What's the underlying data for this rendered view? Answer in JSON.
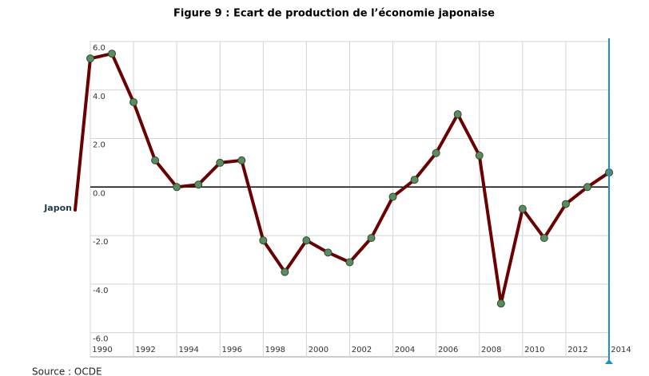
{
  "chart_data": {
    "type": "line",
    "title": "Figure 9 : Ecart de production de l’économie japonaise",
    "source": "Source : OCDE",
    "x": [
      1990,
      1991,
      1992,
      1993,
      1994,
      1995,
      1996,
      1997,
      1998,
      1999,
      2000,
      2001,
      2002,
      2003,
      2004,
      2005,
      2006,
      2007,
      2008,
      2009,
      2010,
      2011,
      2012,
      2013,
      2014
    ],
    "series": [
      {
        "name": "Japon",
        "color": "#6b0000",
        "marker_color": "#5b8c5f",
        "values": [
          5.3,
          5.5,
          3.5,
          1.1,
          0.0,
          0.1,
          1.0,
          1.1,
          -2.2,
          -3.5,
          -2.2,
          -2.7,
          -3.1,
          -2.1,
          -0.4,
          0.3,
          1.4,
          3.0,
          1.3,
          -4.8,
          -0.9,
          -2.1,
          -0.7,
          0.0,
          0.6
        ]
      }
    ],
    "xlim": [
      1990,
      2014
    ],
    "xticks": [
      1990,
      1992,
      1994,
      1996,
      1998,
      2000,
      2002,
      2004,
      2006,
      2008,
      2010,
      2012,
      2014
    ],
    "ylim": [
      -7,
      6
    ],
    "yticks": [
      {
        "value": 6,
        "label": "6.0"
      },
      {
        "value": 4,
        "label": "4.0"
      },
      {
        "value": 2,
        "label": "2.0"
      },
      {
        "value": 0,
        "label": "0.0"
      },
      {
        "value": -2,
        "label": "-2.0"
      },
      {
        "value": -4,
        "label": "-4.0"
      },
      {
        "value": -6,
        "label": "-6.0"
      }
    ],
    "grid": true
  }
}
